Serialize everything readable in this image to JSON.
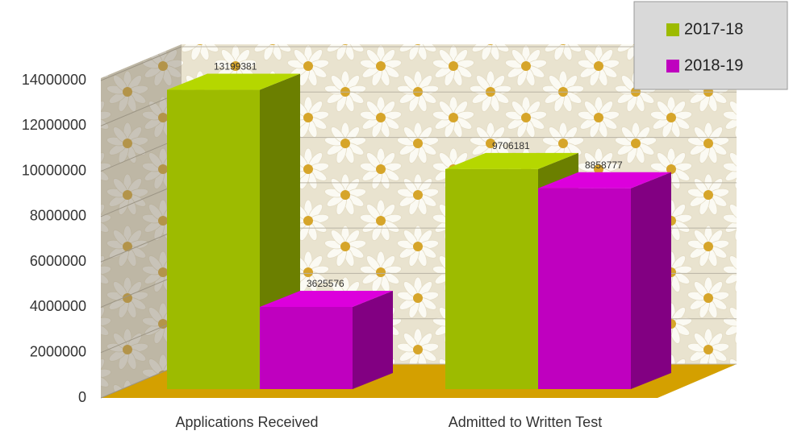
{
  "chart_data": {
    "type": "bar3d",
    "categories": [
      "Applications Received",
      "Admitted to Written Test"
    ],
    "series": [
      {
        "name": "2017-18",
        "color": "#9dbb00",
        "values": [
          13199381,
          9706181
        ]
      },
      {
        "name": "2018-19",
        "color": "#bf00bf",
        "values": [
          3625576,
          8858777
        ]
      }
    ],
    "ylim": [
      0,
      14000000
    ],
    "yticks": [
      0,
      2000000,
      4000000,
      6000000,
      8000000,
      10000000,
      12000000,
      14000000
    ],
    "grid": true,
    "legend": "top-right"
  }
}
